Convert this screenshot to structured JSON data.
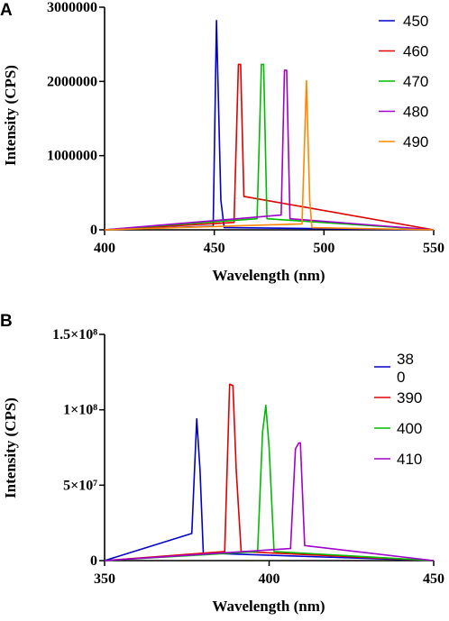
{
  "chart_data": [
    {
      "panel": "A",
      "type": "line",
      "xlabel": "Wavelength (nm)",
      "ylabel": "Intensity (CPS)",
      "xlim": [
        400,
        550
      ],
      "ylim": [
        0,
        3000000
      ],
      "xticks": [
        "400",
        "450",
        "500",
        "550"
      ],
      "yticks": [
        "0",
        "1000000",
        "2000000",
        "3000000"
      ],
      "legend_position": "top-right",
      "grid": false,
      "series": [
        {
          "name": "450",
          "color": "#0000CC",
          "x": [
            400,
            449.5,
            451,
            453,
            454.5,
            550
          ],
          "y": [
            0,
            50000,
            2820000,
            400000,
            30000,
            0
          ]
        },
        {
          "name": "460",
          "color": "#E00000",
          "x": [
            400,
            459,
            461,
            462,
            463.5,
            550
          ],
          "y": [
            0,
            100000,
            2230000,
            2230000,
            450000,
            0
          ]
        },
        {
          "name": "470",
          "color": "#00BB00",
          "x": [
            400,
            469.5,
            471.5,
            472.5,
            474,
            550
          ],
          "y": [
            0,
            150000,
            2230000,
            2230000,
            150000,
            0
          ]
        },
        {
          "name": "480",
          "color": "#A000CC",
          "x": [
            400,
            480.5,
            482,
            483,
            484.5,
            550
          ],
          "y": [
            0,
            200000,
            2150000,
            2150000,
            150000,
            0
          ]
        },
        {
          "name": "490",
          "color": "#FF8800",
          "x": [
            400,
            490,
            492,
            493.5,
            494.5,
            550
          ],
          "y": [
            0,
            80000,
            2010000,
            400000,
            30000,
            0
          ]
        }
      ]
    },
    {
      "panel": "B",
      "type": "line",
      "xlabel": "Wavelength (nm)",
      "ylabel": "Intensity (CPS)",
      "xlim": [
        350,
        450
      ],
      "ylim": [
        0,
        150000000
      ],
      "xticks": [
        "350",
        "400",
        "450"
      ],
      "yticks": [
        "0",
        "5×10⁷",
        "1×10⁸",
        "1.5×10⁸"
      ],
      "legend_position": "top-right",
      "grid": false,
      "series": [
        {
          "name": "38\n0",
          "color": "#0000CC",
          "x": [
            350,
            376.5,
            378,
            379,
            380,
            450
          ],
          "y": [
            0,
            18000000,
            94000000,
            60000000,
            5000000,
            0
          ]
        },
        {
          "name": "390",
          "color": "#E00000",
          "x": [
            350,
            386.5,
            388,
            389,
            390,
            391.5,
            450
          ],
          "y": [
            0,
            6000000,
            117000000,
            116000000,
            60000000,
            6000000,
            0
          ]
        },
        {
          "name": "400",
          "color": "#00BB00",
          "x": [
            350,
            396.5,
            398,
            399,
            400,
            401.5,
            450
          ],
          "y": [
            0,
            6000000,
            85000000,
            103000000,
            75000000,
            6000000,
            0
          ]
        },
        {
          "name": "410",
          "color": "#A000CC",
          "x": [
            350,
            406.5,
            408,
            409,
            409.5,
            410.8,
            450
          ],
          "y": [
            0,
            8000000,
            74000000,
            78000000,
            78000000,
            10000000,
            0
          ]
        }
      ]
    }
  ]
}
